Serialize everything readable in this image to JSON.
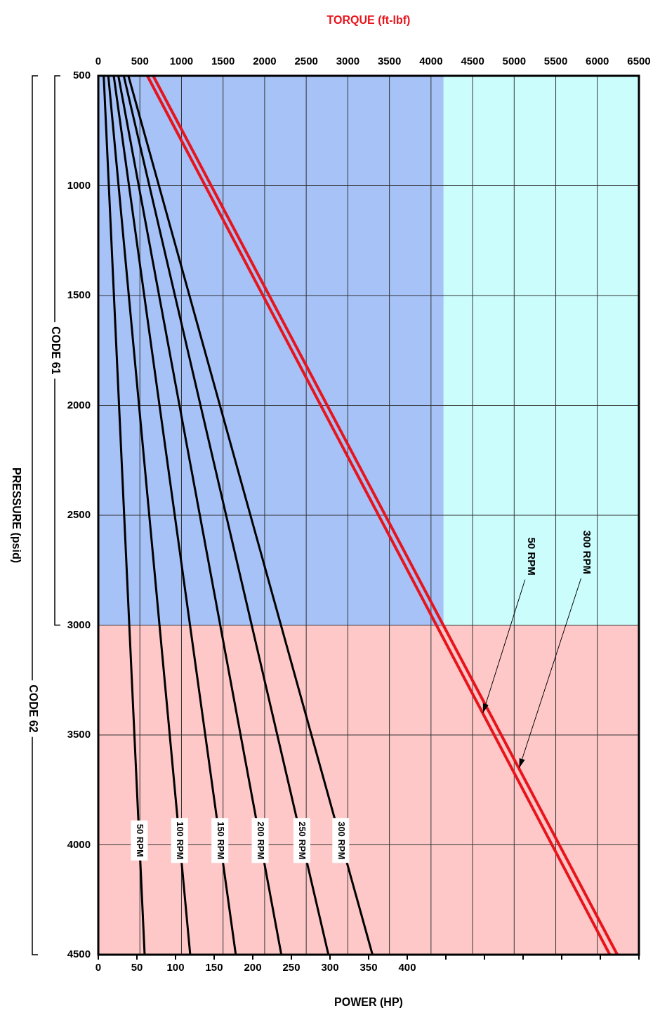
{
  "chart_data": {
    "type": "line",
    "x2label": "TORQUE (ft-lbf)",
    "xlabel": "POWER (HP)",
    "ylabel": "PRESSURE (psid)",
    "ylim": [
      4500,
      500
    ],
    "yticks": [
      500,
      1000,
      1500,
      2000,
      2500,
      3000,
      3500,
      4000,
      4500
    ],
    "xlim": [
      0,
      700
    ],
    "xticks": [
      0,
      50,
      100,
      150,
      200,
      250,
      300,
      350,
      400,
      {
        "value": 450,
        "label": null
      },
      {
        "value": 500,
        "label": null
      },
      {
        "value": 550,
        "label": null
      },
      {
        "value": 600,
        "label": null
      },
      {
        "value": 650,
        "label": null
      },
      {
        "value": 700,
        "label": null
      }
    ],
    "x2lim": [
      0,
      6500
    ],
    "x2ticks": [
      0,
      500,
      1000,
      1500,
      2000,
      2500,
      3000,
      3500,
      4000,
      4500,
      5000,
      5500,
      6000,
      6500
    ],
    "grid": true,
    "legend": false,
    "marker": "none",
    "line_style": "solid",
    "series": [
      {
        "name": "50 RPM",
        "color": "#000000",
        "x": [
          7,
          60
        ],
        "values": [
          500,
          4500
        ]
      },
      {
        "name": "100 RPM",
        "color": "#000000",
        "x": [
          13,
          119
        ],
        "values": [
          500,
          4500
        ]
      },
      {
        "name": "150 RPM",
        "color": "#000000",
        "x": [
          20,
          178
        ],
        "values": [
          500,
          4500
        ]
      },
      {
        "name": "200 RPM",
        "color": "#000000",
        "x": [
          26,
          237
        ],
        "values": [
          500,
          4500
        ]
      },
      {
        "name": "250 RPM",
        "color": "#000000",
        "x": [
          33,
          298
        ],
        "values": [
          500,
          4500
        ]
      },
      {
        "name": "300 RPM",
        "color": "#000000",
        "x": [
          39,
          355
        ],
        "values": [
          500,
          4500
        ]
      },
      {
        "color": "#e8141c",
        "axis": "x2",
        "x": [
          590,
          6150
        ],
        "values": [
          500,
          4500
        ]
      },
      {
        "color": "#e8141c",
        "axis": "x2",
        "x": [
          660,
          6240
        ],
        "values": [
          500,
          4500
        ]
      }
    ],
    "bands": [
      {
        "axis": "y",
        "from": 500,
        "to": 3000,
        "color": "#ccfdfd"
      },
      {
        "axis": "x2",
        "from": 0,
        "to": 4150,
        "color": "#a6c2f7"
      },
      {
        "axis": "y",
        "from": 3000,
        "to": 4500,
        "color": "#ffc8c8"
      }
    ],
    "annotations": [
      {
        "text": "50 RPM",
        "x": 498,
        "y": 3400
      },
      {
        "text": "300 RPM",
        "x": 545,
        "y": 3650
      },
      "CODE 61",
      "CODE 62"
    ]
  }
}
